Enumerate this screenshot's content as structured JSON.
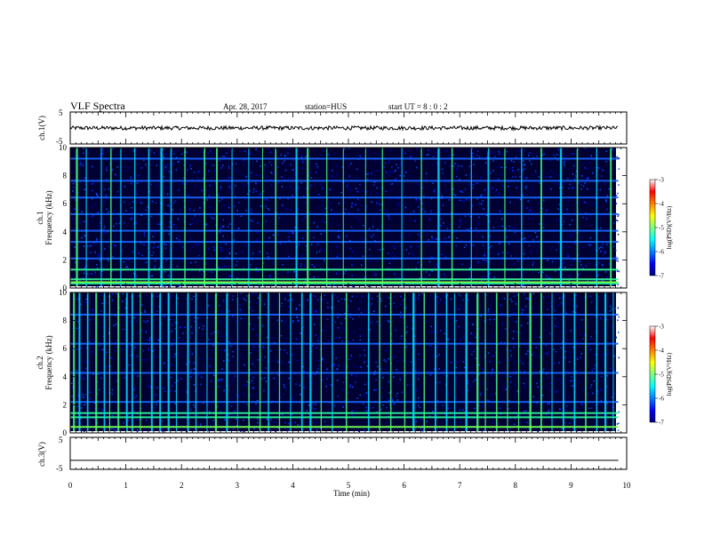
{
  "header": {
    "title": "VLF Spectra",
    "date": "Apr. 28, 2017",
    "station": "station=HUS",
    "start_ut": "start  UT =   8 : 0  : 2"
  },
  "chart_data": [
    {
      "type": "line",
      "name": "ch1-waveform",
      "ylabel": "ch.1(V)",
      "x_range": [
        0,
        10
      ],
      "ylim": [
        -5,
        5
      ],
      "yticks": [
        "5",
        "-5"
      ],
      "description_values": {
        "baseline": 0.0,
        "noise_amplitude": 0.6
      }
    },
    {
      "type": "heatmap",
      "name": "ch1-spectrogram",
      "ylabel": "ch.1\nFrequency (kHz)",
      "ylabel_top": "ch.1",
      "ylabel_bottom": "Frequency (kHz)",
      "x_range": [
        0,
        9.85
      ],
      "ylim": [
        0,
        10
      ],
      "yticks": [
        "0",
        "2",
        "4",
        "6",
        "8",
        "10"
      ],
      "colorbar": {
        "label": "log(PSD)(V²/Hz)",
        "range": [
          -7,
          -3
        ],
        "ticks": [
          "-3",
          "-4",
          "-5",
          "-6",
          "-7"
        ],
        "colormap": [
          "#000080",
          "#0000ff",
          "#0080ff",
          "#00ffff",
          "#80ff80",
          "#ffff00",
          "#ff8000",
          "#ff0000",
          "#ffffff"
        ]
      },
      "horizontal_lines_khz": [
        0.2,
        0.5,
        1.2,
        2.0,
        3.2,
        4.0,
        5.2,
        6.4,
        7.6,
        9.2
      ],
      "vertical_bursts_min": [
        0.1,
        0.28,
        0.55,
        0.72,
        0.9,
        1.15,
        1.4,
        1.62,
        1.8,
        2.05,
        2.4,
        2.62,
        2.9,
        3.2,
        3.45,
        3.68,
        4.05,
        4.25,
        4.6,
        4.9,
        5.3,
        5.6,
        5.95,
        6.3,
        6.6,
        6.85,
        7.2,
        7.5,
        7.8,
        8.1,
        8.45,
        8.8,
        9.1,
        9.45,
        9.7
      ]
    },
    {
      "type": "heatmap",
      "name": "ch2-spectrogram",
      "ylabel": "ch.2\nFrequency (kHz)",
      "ylabel_top": "ch.2",
      "ylabel_bottom": "Frequency (kHz)",
      "x_range": [
        0,
        9.85
      ],
      "ylim": [
        0,
        10
      ],
      "yticks": [
        "0",
        "2",
        "4",
        "6",
        "8",
        "10"
      ],
      "colorbar": {
        "label": "log(PSD)(V²/Hz)",
        "range": [
          -7,
          -3
        ],
        "ticks": [
          "-3",
          "-4",
          "-5",
          "-6",
          "-7"
        ],
        "colormap": [
          "#000080",
          "#0000ff",
          "#0080ff",
          "#00ffff",
          "#80ff80",
          "#ffff00",
          "#ff8000",
          "#ff0000",
          "#ffffff"
        ]
      },
      "horizontal_lines_khz": [
        0.3,
        1.0,
        1.3,
        2.1,
        4.2,
        6.3,
        8.4
      ],
      "vertical_bursts_min": [
        0.05,
        0.15,
        0.3,
        0.45,
        0.6,
        0.7,
        0.85,
        1.0,
        1.1,
        1.25,
        1.45,
        1.6,
        1.75,
        1.9,
        2.1,
        2.25,
        2.45,
        2.6,
        2.8,
        3.0,
        3.2,
        3.4,
        3.55,
        3.75,
        3.95,
        4.15,
        4.3,
        4.5,
        4.7,
        4.95,
        5.35,
        5.55,
        5.75,
        6.0,
        6.15,
        6.35,
        6.55,
        6.75,
        6.9,
        7.1,
        7.3,
        7.45,
        7.65,
        7.85,
        8.05,
        8.25,
        8.45,
        8.65,
        8.85,
        9.05,
        9.25,
        9.45,
        9.6,
        9.75
      ]
    },
    {
      "type": "line",
      "name": "ch3-waveform",
      "ylabel": "ch.3(V)",
      "x_range": [
        0,
        9.85
      ],
      "ylim": [
        -5,
        5
      ],
      "yticks": [
        "5",
        "0",
        "-5"
      ],
      "description_values": {
        "baseline": -2.2,
        "noise_amplitude": 0.0
      }
    }
  ],
  "x_axis": {
    "label": "Time  (min)",
    "range": [
      0,
      10
    ],
    "ticks": [
      "0",
      "1",
      "2",
      "3",
      "4",
      "5",
      "6",
      "7",
      "8",
      "9",
      "10"
    ]
  }
}
